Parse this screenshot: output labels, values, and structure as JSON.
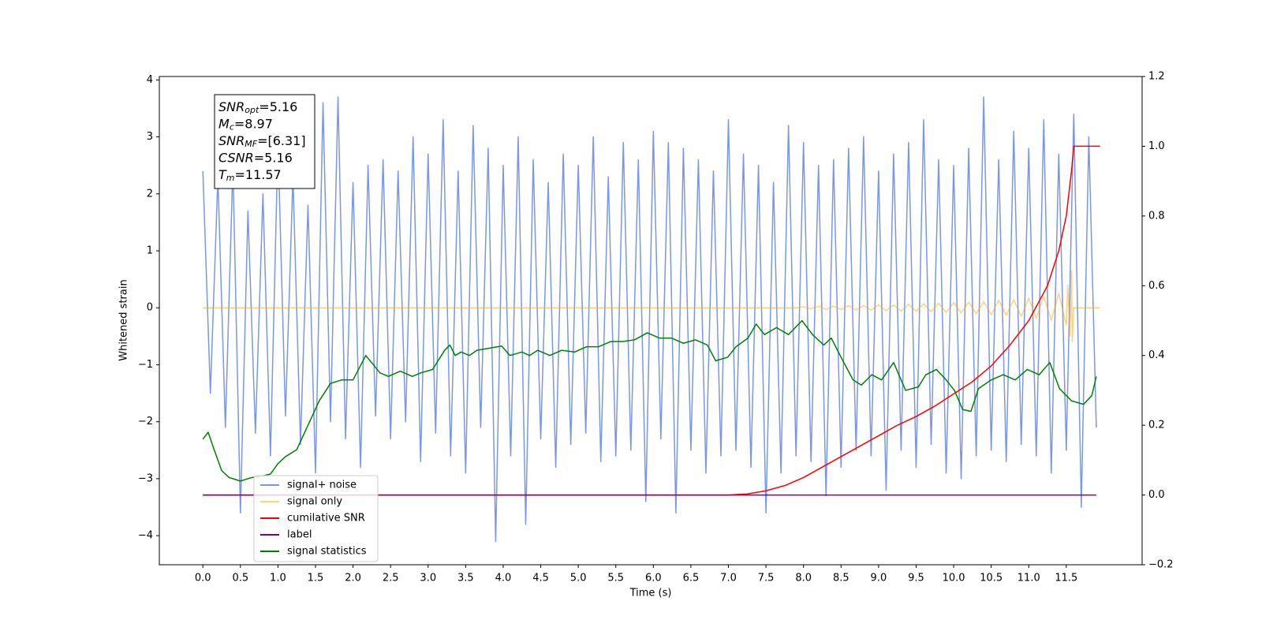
{
  "chart_data": {
    "type": "line",
    "xlabel": "Time (s)",
    "ylabel": "Whitened strain",
    "xlim": [
      -0.58,
      12.51
    ],
    "ylim": [
      -4.51,
      4.06
    ],
    "y2lim": [
      -0.2,
      1.2
    ],
    "xticks": [
      {
        "value": 0,
        "label": "0.0"
      },
      0.5,
      {
        "value": 1,
        "label": "1.0"
      },
      1.5,
      {
        "value": 2,
        "label": "2.0"
      },
      2.5,
      {
        "value": 3,
        "label": "3.0"
      },
      3.5,
      {
        "value": 4,
        "label": "4.0"
      },
      4.5,
      {
        "value": 5,
        "label": "5.0"
      },
      5.5,
      {
        "value": 6,
        "label": "6.0"
      },
      6.5,
      {
        "value": 7,
        "label": "7.0"
      },
      7.5,
      {
        "value": 8,
        "label": "8.0"
      },
      8.5,
      {
        "value": 9,
        "label": "9.0"
      },
      9.5,
      {
        "value": 10,
        "label": "10.0"
      },
      10.5,
      {
        "value": 11,
        "label": "11.0"
      },
      11.5
    ],
    "yticks": [
      {
        "value": -4,
        "label": "−4"
      },
      {
        "value": -3,
        "label": "−3"
      },
      {
        "value": -2,
        "label": "−2"
      },
      {
        "value": -1,
        "label": "−1"
      },
      0,
      1,
      2,
      3,
      4
    ],
    "y2ticks": [
      {
        "value": -0.2,
        "label": "−0.2"
      },
      {
        "value": 0,
        "label": "0.0"
      },
      0.2,
      0.4,
      0.6,
      0.8,
      {
        "value": 1,
        "label": "1.0"
      },
      1.2
    ],
    "legend": "lower left",
    "annotations": [
      {
        "symbol": "SNR",
        "sub": "opt",
        "text": "=5.16"
      },
      {
        "symbol": "M",
        "sub": "c",
        "text": "=8.97"
      },
      {
        "symbol": "SNR",
        "sub": "MF",
        "text": "=[6.31]"
      },
      {
        "symbol": "CSNR",
        "text": "=5.16"
      },
      {
        "symbol": "T",
        "sub": "m",
        "text": "=11.57"
      }
    ],
    "series": [
      {
        "name": "signal+ noise",
        "color": "#4169e1",
        "opacity": 0.7,
        "x": [
          0.0,
          0.1,
          0.2,
          0.3,
          0.4,
          0.5,
          0.6,
          0.7,
          0.8,
          0.9,
          1.0,
          1.1,
          1.2,
          1.3,
          1.4,
          1.5,
          1.6,
          1.7,
          1.8,
          1.9,
          2.0,
          2.1,
          2.2,
          2.3,
          2.4,
          2.5,
          2.6,
          2.7,
          2.8,
          2.9,
          3.0,
          3.1,
          3.2,
          3.3,
          3.4,
          3.5,
          3.6,
          3.7,
          3.8,
          3.9,
          4.0,
          4.1,
          4.2,
          4.3,
          4.4,
          4.5,
          4.6,
          4.7,
          4.8,
          4.9,
          5.0,
          5.1,
          5.2,
          5.3,
          5.4,
          5.5,
          5.6,
          5.7,
          5.8,
          5.9,
          6.0,
          6.1,
          6.2,
          6.3,
          6.4,
          6.5,
          6.6,
          6.7,
          6.8,
          6.9,
          7.0,
          7.1,
          7.2,
          7.3,
          7.4,
          7.5,
          7.6,
          7.7,
          7.8,
          7.9,
          8.0,
          8.1,
          8.2,
          8.3,
          8.4,
          8.5,
          8.6,
          8.7,
          8.8,
          8.9,
          9.0,
          9.1,
          9.2,
          9.3,
          9.4,
          9.5,
          9.6,
          9.7,
          9.8,
          9.9,
          10.0,
          10.1,
          10.2,
          10.3,
          10.4,
          10.5,
          10.6,
          10.7,
          10.8,
          10.9,
          11.0,
          11.1,
          11.2,
          11.3,
          11.4,
          11.5,
          11.6,
          11.7,
          11.8,
          11.9
        ],
        "values": [
          2.4,
          -1.5,
          2.3,
          -2.1,
          2.5,
          -3.6,
          1.7,
          -2.2,
          2.0,
          -2.6,
          2.9,
          -1.9,
          2.3,
          -2.4,
          1.8,
          -2.9,
          3.6,
          -2.0,
          3.7,
          -2.3,
          2.2,
          -2.8,
          2.5,
          -1.9,
          2.6,
          -2.3,
          2.4,
          -2.0,
          3.0,
          -2.7,
          2.7,
          -2.2,
          3.3,
          -2.6,
          2.4,
          -2.9,
          3.2,
          -2.1,
          2.8,
          -4.1,
          2.5,
          -2.6,
          3.0,
          -3.8,
          2.6,
          -2.3,
          2.2,
          -2.8,
          2.7,
          -2.4,
          2.5,
          -2.2,
          3.0,
          -2.7,
          2.3,
          -2.6,
          2.9,
          -2.5,
          2.6,
          -3.4,
          3.1,
          -2.3,
          2.9,
          -3.6,
          2.8,
          -2.5,
          2.6,
          -2.9,
          2.4,
          -2.6,
          3.3,
          -2.5,
          2.7,
          -2.8,
          2.5,
          -3.6,
          2.2,
          -2.9,
          3.2,
          -2.6,
          2.9,
          -2.7,
          2.5,
          -3.3,
          2.6,
          -2.8,
          2.8,
          -2.5,
          3.0,
          -2.6,
          2.4,
          -3.2,
          2.7,
          -2.5,
          2.9,
          -2.8,
          3.3,
          -2.4,
          2.6,
          -2.9,
          2.5,
          -3.0,
          2.8,
          -2.6,
          3.7,
          -2.5,
          2.6,
          -2.7,
          3.1,
          -2.4,
          2.8,
          -2.6,
          3.3,
          -2.9,
          2.7,
          -2.5,
          3.4,
          -3.5,
          3.0,
          -2.1
        ]
      },
      {
        "name": "signal only",
        "color": "#ffa500",
        "opacity": 0.5,
        "x": [
          0,
          7.9,
          8.0,
          8.1,
          8.2,
          8.3,
          8.4,
          8.5,
          8.6,
          8.7,
          8.8,
          8.9,
          9.0,
          9.1,
          9.2,
          9.3,
          9.4,
          9.5,
          9.6,
          9.7,
          9.8,
          9.9,
          10.0,
          10.1,
          10.2,
          10.3,
          10.4,
          10.5,
          10.6,
          10.7,
          10.8,
          10.9,
          11.0,
          11.1,
          11.2,
          11.3,
          11.4,
          11.5,
          11.52,
          11.55,
          11.57,
          11.58,
          11.6,
          11.95
        ],
        "values": [
          0,
          0,
          0.02,
          -0.02,
          0.03,
          -0.03,
          0.03,
          -0.03,
          0.04,
          -0.04,
          0.04,
          -0.04,
          0.05,
          -0.05,
          0.05,
          -0.06,
          0.06,
          -0.06,
          0.07,
          -0.07,
          0.08,
          -0.08,
          0.09,
          -0.09,
          0.1,
          -0.1,
          0.11,
          -0.12,
          0.13,
          -0.13,
          0.14,
          -0.15,
          0.17,
          -0.18,
          0.2,
          -0.22,
          0.25,
          -0.3,
          0.4,
          -0.5,
          0.65,
          -0.6,
          0,
          0
        ]
      },
      {
        "name": "cumilative SNR",
        "color": "#ff0000",
        "axis": "y2",
        "x": [
          0,
          7.0,
          7.25,
          7.5,
          7.75,
          8.0,
          8.25,
          8.5,
          8.75,
          9.0,
          9.25,
          9.5,
          9.75,
          10.0,
          10.25,
          10.5,
          10.75,
          11.0,
          11.25,
          11.4,
          11.5,
          11.57,
          11.6,
          11.95
        ],
        "values": [
          0,
          0,
          0.003,
          0.012,
          0.027,
          0.05,
          0.08,
          0.11,
          0.14,
          0.17,
          0.2,
          0.225,
          0.255,
          0.29,
          0.325,
          0.37,
          0.43,
          0.5,
          0.6,
          0.7,
          0.8,
          0.93,
          1.0,
          1.0
        ]
      },
      {
        "name": "label",
        "color": "#800080",
        "axis": "y2",
        "x": [
          0,
          11.9
        ],
        "values": [
          0,
          0
        ]
      },
      {
        "name": "signal statistics",
        "color": "#008000",
        "axis": "y2",
        "x": [
          0,
          0.07,
          0.15,
          0.25,
          0.35,
          0.5,
          0.65,
          0.8,
          0.9,
          1.0,
          1.1,
          1.25,
          1.4,
          1.55,
          1.7,
          1.85,
          2.0,
          2.17,
          2.36,
          2.47,
          2.63,
          2.79,
          2.9,
          3.06,
          3.22,
          3.29,
          3.36,
          3.44,
          3.55,
          3.65,
          3.98,
          4.09,
          4.25,
          4.35,
          4.46,
          4.62,
          4.78,
          4.95,
          5.11,
          5.27,
          5.43,
          5.59,
          5.75,
          5.92,
          6.08,
          6.24,
          6.4,
          6.56,
          6.72,
          6.83,
          6.99,
          7.1,
          7.26,
          7.37,
          7.48,
          7.64,
          7.8,
          7.98,
          8.12,
          8.27,
          8.37,
          8.5,
          8.66,
          8.77,
          8.91,
          9.04,
          9.2,
          9.36,
          9.53,
          9.63,
          9.77,
          9.9,
          10.01,
          10.12,
          10.23,
          10.33,
          10.5,
          10.66,
          10.82,
          10.98,
          11.14,
          11.28,
          11.41,
          11.57,
          11.73,
          11.84,
          11.9
        ],
        "values": [
          0.16,
          0.18,
          0.13,
          0.07,
          0.05,
          0.04,
          0.05,
          0.055,
          0.06,
          0.09,
          0.11,
          0.13,
          0.2,
          0.27,
          0.32,
          0.33,
          0.33,
          0.4,
          0.35,
          0.34,
          0.355,
          0.34,
          0.35,
          0.36,
          0.415,
          0.43,
          0.4,
          0.41,
          0.4,
          0.415,
          0.427,
          0.4,
          0.41,
          0.4,
          0.415,
          0.4,
          0.415,
          0.41,
          0.425,
          0.425,
          0.44,
          0.44,
          0.445,
          0.465,
          0.45,
          0.45,
          0.435,
          0.445,
          0.43,
          0.385,
          0.395,
          0.425,
          0.45,
          0.49,
          0.46,
          0.48,
          0.46,
          0.5,
          0.46,
          0.43,
          0.45,
          0.395,
          0.33,
          0.315,
          0.345,
          0.33,
          0.38,
          0.3,
          0.31,
          0.345,
          0.36,
          0.33,
          0.3,
          0.245,
          0.24,
          0.305,
          0.33,
          0.345,
          0.33,
          0.36,
          0.345,
          0.38,
          0.305,
          0.27,
          0.26,
          0.285,
          0.34
        ]
      }
    ]
  }
}
